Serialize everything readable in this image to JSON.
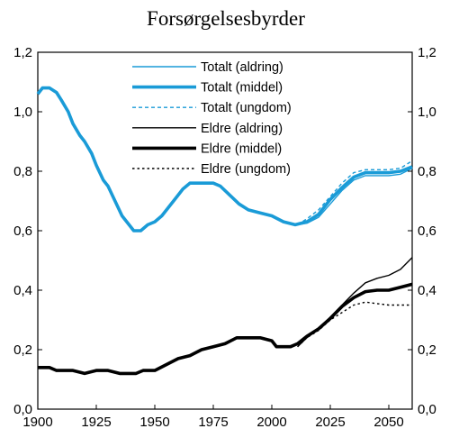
{
  "chart_data": {
    "type": "line",
    "title": "Forsørgelsesbyrder",
    "xlabel": "",
    "ylabel": "",
    "xlim": [
      1900,
      2060
    ],
    "ylim": [
      0,
      1.2
    ],
    "x_ticks": [
      "1900",
      "1925",
      "1950",
      "1975",
      "2000",
      "2025",
      "2050"
    ],
    "x_tick_values": [
      1900,
      1925,
      1950,
      1975,
      2000,
      2025,
      2050
    ],
    "y_ticks": [
      "0,0",
      "0,2",
      "0,4",
      "0,6",
      "0,8",
      "1,0",
      "1,2"
    ],
    "y_tick_values": [
      0,
      0.2,
      0.4,
      0.6,
      0.8,
      1.0,
      1.2
    ],
    "y_ticks_right": true,
    "grid": false,
    "legend_position": "top-center",
    "series": [
      {
        "name": "Totalt (aldring)",
        "color": "#1a9bd7",
        "width": "thin",
        "dash": "solid",
        "points": [
          [
            2011,
            0.62
          ],
          [
            2015,
            0.625
          ],
          [
            2020,
            0.645
          ],
          [
            2025,
            0.69
          ],
          [
            2030,
            0.735
          ],
          [
            2035,
            0.77
          ],
          [
            2040,
            0.785
          ],
          [
            2045,
            0.785
          ],
          [
            2050,
            0.785
          ],
          [
            2055,
            0.79
          ],
          [
            2060,
            0.81
          ]
        ]
      },
      {
        "name": "Totalt (middel)",
        "color": "#1a9bd7",
        "width": "thick",
        "dash": "solid",
        "points": [
          [
            1900,
            1.06
          ],
          [
            1902,
            1.08
          ],
          [
            1905,
            1.08
          ],
          [
            1908,
            1.065
          ],
          [
            1910,
            1.04
          ],
          [
            1913,
            1.0
          ],
          [
            1915,
            0.96
          ],
          [
            1918,
            0.92
          ],
          [
            1920,
            0.9
          ],
          [
            1923,
            0.86
          ],
          [
            1925,
            0.82
          ],
          [
            1928,
            0.77
          ],
          [
            1930,
            0.75
          ],
          [
            1933,
            0.7
          ],
          [
            1936,
            0.65
          ],
          [
            1939,
            0.62
          ],
          [
            1941,
            0.6
          ],
          [
            1944,
            0.6
          ],
          [
            1947,
            0.62
          ],
          [
            1950,
            0.63
          ],
          [
            1953,
            0.65
          ],
          [
            1956,
            0.68
          ],
          [
            1959,
            0.71
          ],
          [
            1962,
            0.74
          ],
          [
            1965,
            0.76
          ],
          [
            1970,
            0.76
          ],
          [
            1975,
            0.76
          ],
          [
            1978,
            0.75
          ],
          [
            1982,
            0.72
          ],
          [
            1986,
            0.69
          ],
          [
            1990,
            0.67
          ],
          [
            1995,
            0.66
          ],
          [
            2000,
            0.65
          ],
          [
            2005,
            0.63
          ],
          [
            2010,
            0.62
          ],
          [
            2015,
            0.63
          ],
          [
            2020,
            0.655
          ],
          [
            2025,
            0.705
          ],
          [
            2030,
            0.745
          ],
          [
            2035,
            0.78
          ],
          [
            2040,
            0.795
          ],
          [
            2045,
            0.795
          ],
          [
            2050,
            0.795
          ],
          [
            2055,
            0.8
          ],
          [
            2060,
            0.815
          ]
        ]
      },
      {
        "name": "Totalt (ungdom)",
        "color": "#1a9bd7",
        "width": "thin",
        "dash": "dashed",
        "points": [
          [
            2011,
            0.62
          ],
          [
            2015,
            0.64
          ],
          [
            2020,
            0.67
          ],
          [
            2025,
            0.715
          ],
          [
            2030,
            0.76
          ],
          [
            2035,
            0.795
          ],
          [
            2040,
            0.805
          ],
          [
            2045,
            0.805
          ],
          [
            2050,
            0.805
          ],
          [
            2055,
            0.81
          ],
          [
            2060,
            0.835
          ]
        ]
      },
      {
        "name": "Eldre (aldring)",
        "color": "#000000",
        "width": "thin",
        "dash": "solid",
        "points": [
          [
            2011,
            0.21
          ],
          [
            2015,
            0.24
          ],
          [
            2020,
            0.27
          ],
          [
            2025,
            0.31
          ],
          [
            2030,
            0.35
          ],
          [
            2035,
            0.39
          ],
          [
            2040,
            0.425
          ],
          [
            2045,
            0.44
          ],
          [
            2050,
            0.45
          ],
          [
            2055,
            0.47
          ],
          [
            2060,
            0.51
          ]
        ]
      },
      {
        "name": "Eldre (middel)",
        "color": "#000000",
        "width": "thick",
        "dash": "solid",
        "points": [
          [
            1900,
            0.14
          ],
          [
            1905,
            0.14
          ],
          [
            1908,
            0.13
          ],
          [
            1915,
            0.13
          ],
          [
            1920,
            0.12
          ],
          [
            1925,
            0.13
          ],
          [
            1930,
            0.13
          ],
          [
            1935,
            0.12
          ],
          [
            1942,
            0.12
          ],
          [
            1945,
            0.13
          ],
          [
            1950,
            0.13
          ],
          [
            1955,
            0.15
          ],
          [
            1960,
            0.17
          ],
          [
            1965,
            0.18
          ],
          [
            1970,
            0.2
          ],
          [
            1975,
            0.21
          ],
          [
            1980,
            0.22
          ],
          [
            1985,
            0.24
          ],
          [
            1990,
            0.24
          ],
          [
            1995,
            0.24
          ],
          [
            2000,
            0.23
          ],
          [
            2002,
            0.21
          ],
          [
            2008,
            0.21
          ],
          [
            2011,
            0.22
          ],
          [
            2015,
            0.245
          ],
          [
            2020,
            0.27
          ],
          [
            2025,
            0.305
          ],
          [
            2030,
            0.345
          ],
          [
            2035,
            0.375
          ],
          [
            2040,
            0.395
          ],
          [
            2045,
            0.4
          ],
          [
            2050,
            0.4
          ],
          [
            2055,
            0.41
          ],
          [
            2060,
            0.42
          ]
        ]
      },
      {
        "name": "Eldre (ungdom)",
        "color": "#000000",
        "width": "thin",
        "dash": "dotted",
        "points": [
          [
            2011,
            0.21
          ],
          [
            2015,
            0.24
          ],
          [
            2020,
            0.265
          ],
          [
            2025,
            0.3
          ],
          [
            2030,
            0.325
          ],
          [
            2035,
            0.35
          ],
          [
            2040,
            0.36
          ],
          [
            2045,
            0.355
          ],
          [
            2050,
            0.35
          ],
          [
            2060,
            0.35
          ]
        ]
      }
    ]
  }
}
